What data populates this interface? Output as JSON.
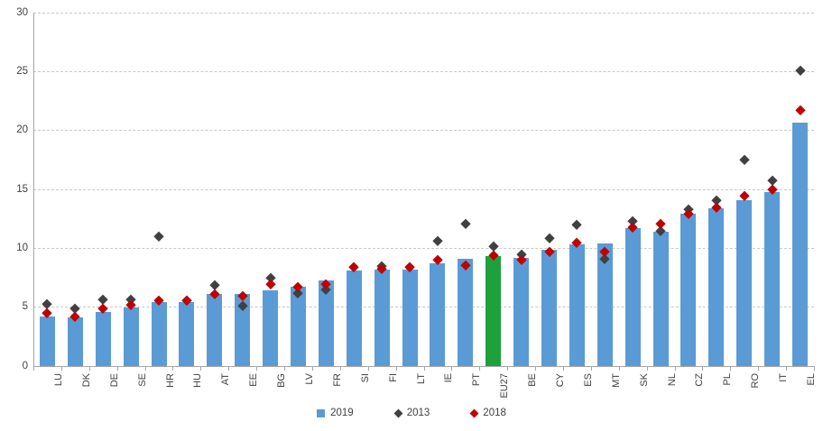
{
  "chart_data": {
    "type": "bar",
    "title": "",
    "xlabel": "",
    "ylabel": "",
    "ylim": [
      0,
      30
    ],
    "ytick_step": 5,
    "grid": "horizontal-dashed",
    "legend_position": "bottom",
    "categories": [
      "LU",
      "DK",
      "DE",
      "SE",
      "HR",
      "HU",
      "AT",
      "EE",
      "BG",
      "LV",
      "FR",
      "SI",
      "FI",
      "LT",
      "IE",
      "PT",
      "EU27",
      "BE",
      "CY",
      "ES",
      "MT",
      "SK",
      "NL",
      "CZ",
      "PL",
      "RO",
      "IT",
      "EL"
    ],
    "series": [
      {
        "name": "2019",
        "type": "bar",
        "color": "#5B9BD5",
        "values": [
          4.2,
          4.1,
          4.6,
          5.0,
          5.4,
          5.4,
          6.1,
          6.1,
          6.4,
          6.7,
          7.3,
          8.1,
          8.2,
          8.2,
          8.7,
          9.1,
          9.3,
          9.2,
          9.9,
          10.3,
          10.4,
          11.7,
          11.4,
          12.9,
          13.4,
          14.1,
          14.8,
          20.7
        ]
      },
      {
        "name": "2013",
        "type": "point-diamond",
        "color": "#404040",
        "values": [
          5.3,
          4.9,
          5.7,
          5.7,
          11.0,
          5.6,
          6.9,
          5.1,
          7.5,
          6.2,
          6.5,
          8.4,
          8.5,
          8.4,
          10.6,
          12.1,
          10.2,
          9.5,
          10.9,
          12.0,
          9.1,
          12.3,
          11.5,
          13.3,
          14.1,
          17.5,
          15.8,
          25.1
        ]
      },
      {
        "name": "2018",
        "type": "point-diamond",
        "color": "#C00000",
        "values": [
          4.5,
          4.2,
          4.9,
          5.2,
          5.6,
          5.6,
          6.1,
          6.0,
          7.0,
          6.7,
          7.0,
          8.4,
          8.3,
          8.4,
          9.0,
          8.6,
          9.4,
          9.0,
          9.7,
          10.5,
          9.7,
          11.8,
          12.1,
          12.9,
          13.5,
          14.5,
          15.0,
          21.7
        ]
      }
    ],
    "highlight": {
      "category": "EU27",
      "color": "#1EA03C"
    },
    "colors": {
      "axis": "#A6A6A6",
      "gridline": "#C9C9C9",
      "text": "#404040",
      "background": "#FFFFFF"
    }
  },
  "legend": {
    "items": [
      {
        "label": "2019",
        "swatch": "blue-square"
      },
      {
        "label": "2013",
        "swatch": "black-diamond"
      },
      {
        "label": "2018",
        "swatch": "red-diamond"
      }
    ]
  }
}
